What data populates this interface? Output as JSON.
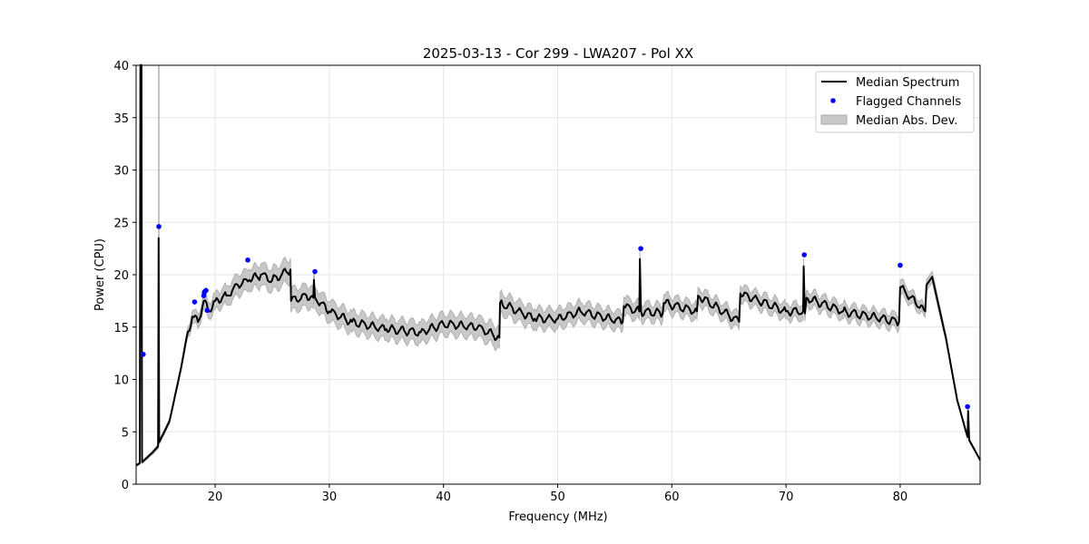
{
  "chart_data": {
    "type": "line",
    "title": "2025-03-13 - Cor 299 - LWA207 - Pol XX",
    "xlabel": "Frequency (MHz)",
    "ylabel": "Power (CPU)",
    "xlim": [
      13.08,
      87.0
    ],
    "ylim": [
      0,
      40
    ],
    "xticks": [
      20,
      30,
      40,
      50,
      60,
      70,
      80
    ],
    "yticks": [
      0,
      5,
      10,
      15,
      20,
      25,
      30,
      35,
      40
    ],
    "grid": true,
    "legend_position": "top-right",
    "legend": [
      "Median Spectrum",
      "Flagged Channels",
      "Median Abs. Dev."
    ],
    "colors": {
      "line": "#000000",
      "flagged": "#0000ff",
      "band": "#bfbfbf"
    },
    "median_spectrum": [
      [
        13.1,
        1.8
      ],
      [
        13.4,
        2.0
      ],
      [
        13.45,
        40
      ],
      [
        13.55,
        40
      ],
      [
        13.6,
        2.1
      ],
      [
        14.5,
        3.0
      ],
      [
        15.0,
        3.6
      ],
      [
        15.05,
        23.5
      ],
      [
        15.1,
        4.0
      ],
      [
        16.0,
        6.0
      ],
      [
        17.0,
        11.0
      ],
      [
        17.5,
        14.0
      ],
      [
        18.0,
        16.0
      ],
      [
        18.5,
        15.5
      ],
      [
        19.0,
        17.5
      ],
      [
        19.5,
        16.5
      ],
      [
        20.0,
        17.5
      ],
      [
        21.0,
        18.0
      ],
      [
        22.0,
        19.0
      ],
      [
        23.0,
        19.5
      ],
      [
        24.0,
        20.0
      ],
      [
        25.0,
        19.5
      ],
      [
        26.6,
        20.5
      ],
      [
        26.65,
        17.5
      ],
      [
        28.0,
        18.0
      ],
      [
        28.6,
        17.8
      ],
      [
        28.65,
        19.5
      ],
      [
        28.75,
        17.8
      ],
      [
        30.0,
        16.5
      ],
      [
        32.0,
        15.5
      ],
      [
        35.0,
        14.8
      ],
      [
        38.0,
        14.5
      ],
      [
        40.0,
        15.3
      ],
      [
        43.0,
        15.0
      ],
      [
        44.9,
        14.0
      ],
      [
        44.95,
        17.3
      ],
      [
        48.0,
        15.8
      ],
      [
        50.0,
        15.8
      ],
      [
        52.0,
        16.5
      ],
      [
        55.7,
        15.5
      ],
      [
        55.8,
        17.0
      ],
      [
        57.15,
        16.5
      ],
      [
        57.2,
        21.5
      ],
      [
        57.3,
        16.5
      ],
      [
        59.2,
        16.3
      ],
      [
        59.3,
        17.3
      ],
      [
        62.2,
        16.5
      ],
      [
        62.3,
        18.0
      ],
      [
        65.9,
        15.5
      ],
      [
        66.0,
        18.2
      ],
      [
        70.0,
        16.5
      ],
      [
        71.5,
        16.5
      ],
      [
        71.55,
        20.8
      ],
      [
        71.65,
        16.3
      ],
      [
        71.8,
        17.8
      ],
      [
        75.0,
        16.5
      ],
      [
        79.9,
        15.5
      ],
      [
        80.0,
        18.8
      ],
      [
        82.2,
        16.5
      ],
      [
        82.3,
        19.0
      ],
      [
        82.8,
        19.8
      ],
      [
        84.0,
        14.0
      ],
      [
        85.0,
        8.0
      ],
      [
        85.9,
        4.5
      ],
      [
        85.95,
        7.0
      ],
      [
        86.05,
        4.2
      ],
      [
        87.0,
        2.3
      ]
    ],
    "median_abs_dev": [
      [
        13.1,
        0.1
      ],
      [
        17.0,
        0.3
      ],
      [
        18.0,
        0.6
      ],
      [
        22.0,
        1.0
      ],
      [
        26.0,
        1.1
      ],
      [
        30.0,
        1.0
      ],
      [
        40.0,
        1.0
      ],
      [
        45.0,
        1.0
      ],
      [
        60.0,
        0.8
      ],
      [
        80.0,
        0.7
      ],
      [
        83.0,
        0.5
      ],
      [
        85.0,
        0.2
      ],
      [
        87.0,
        0.1
      ]
    ],
    "flagged_channels": [
      [
        13.7,
        12.4
      ],
      [
        15.07,
        24.6
      ],
      [
        18.2,
        17.4
      ],
      [
        19.0,
        18.0
      ],
      [
        19.05,
        18.3
      ],
      [
        19.1,
        18.4
      ],
      [
        19.2,
        18.5
      ],
      [
        19.3,
        16.6
      ],
      [
        22.86,
        21.4
      ],
      [
        28.74,
        20.3
      ],
      [
        57.28,
        22.5
      ],
      [
        71.6,
        21.9
      ],
      [
        80.0,
        20.9
      ],
      [
        85.9,
        7.4
      ]
    ]
  }
}
